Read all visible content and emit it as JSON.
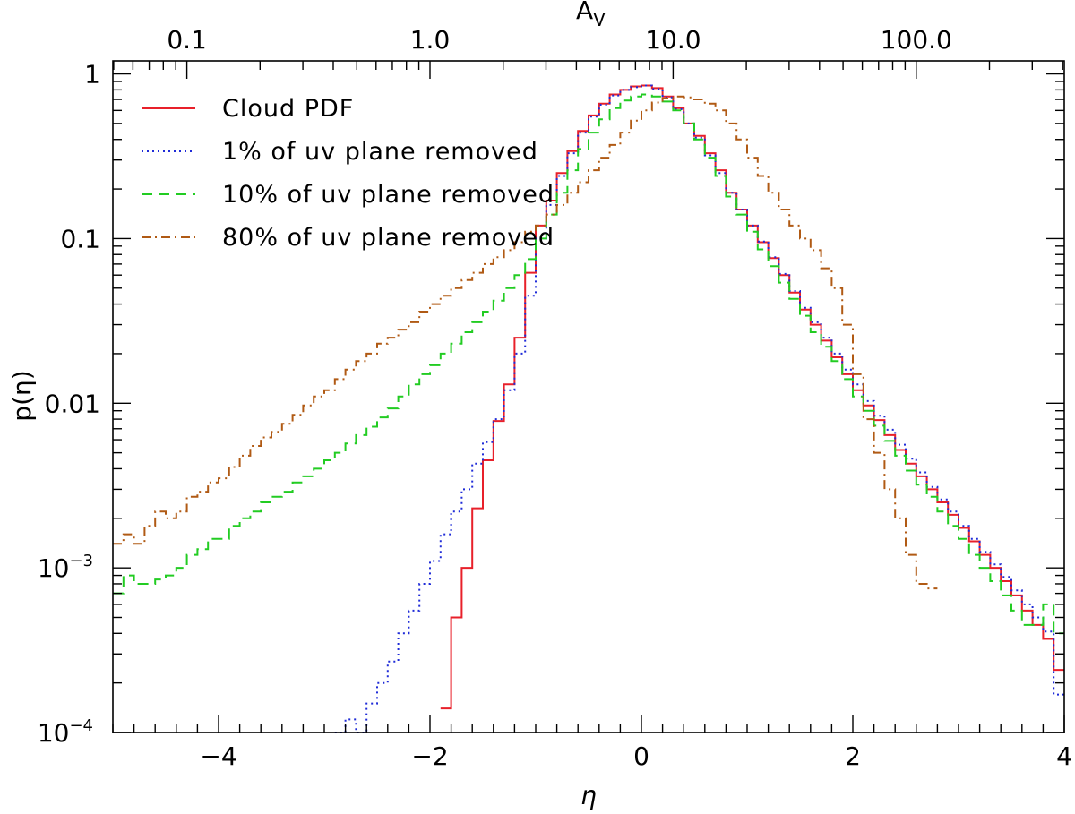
{
  "chart_data": {
    "type": "line",
    "step": true,
    "xlabel": "η",
    "ylabel": "p(η)",
    "top_axis_label": "A",
    "top_axis_label_subscript": "V",
    "xlim": [
      -5,
      4
    ],
    "ylim": [
      0.0001,
      1.2
    ],
    "yscale": "log",
    "x_ticks": [
      -4,
      -2,
      0,
      2,
      4
    ],
    "x_tick_labels": [
      "−4",
      "−2",
      "0",
      "2",
      "4"
    ],
    "y_ticks": [
      {
        "value": 1,
        "label": "1"
      },
      {
        "value": 0.1,
        "label": "0.1"
      },
      {
        "value": 0.01,
        "label": "0.01"
      },
      {
        "value": 0.001,
        "base": "10",
        "exp": "−3"
      },
      {
        "value": 0.0001,
        "base": "10",
        "exp": "−4"
      }
    ],
    "top_ticks": [
      {
        "eta": -4.3,
        "label": "0.1"
      },
      {
        "eta": -2.0,
        "label": "1.0"
      },
      {
        "eta": 0.3,
        "label": "10.0"
      },
      {
        "eta": 2.6,
        "label": "100.0"
      }
    ],
    "legend_position": "top-left",
    "series": [
      {
        "name": "Cloud PDF",
        "color": "#e8202a",
        "dash": "solid",
        "x": [
          -1.85,
          -1.75,
          -1.65,
          -1.55,
          -1.45,
          -1.35,
          -1.25,
          -1.15,
          -1.05,
          -0.95,
          -0.85,
          -0.75,
          -0.65,
          -0.55,
          -0.45,
          -0.35,
          -0.25,
          -0.15,
          -0.05,
          0.05,
          0.15,
          0.25,
          0.35,
          0.45,
          0.55,
          0.65,
          0.75,
          0.85,
          0.95,
          1.05,
          1.15,
          1.25,
          1.35,
          1.45,
          1.55,
          1.65,
          1.75,
          1.85,
          1.95,
          2.05,
          2.15,
          2.25,
          2.35,
          2.45,
          2.55,
          2.65,
          2.75,
          2.85,
          2.95,
          3.05,
          3.15,
          3.25,
          3.35,
          3.45,
          3.55,
          3.65,
          3.75,
          3.85,
          3.95
        ],
        "y": [
          0.00014,
          0.0005,
          0.001,
          0.0023,
          0.0045,
          0.0078,
          0.013,
          0.025,
          0.062,
          0.12,
          0.17,
          0.25,
          0.34,
          0.45,
          0.56,
          0.66,
          0.75,
          0.8,
          0.84,
          0.85,
          0.82,
          0.73,
          0.62,
          0.5,
          0.42,
          0.33,
          0.26,
          0.19,
          0.15,
          0.12,
          0.095,
          0.076,
          0.06,
          0.047,
          0.037,
          0.03,
          0.024,
          0.019,
          0.015,
          0.012,
          0.0097,
          0.0079,
          0.0064,
          0.0052,
          0.0043,
          0.0036,
          0.003,
          0.0025,
          0.0021,
          0.00175,
          0.00145,
          0.0012,
          0.001,
          0.00083,
          0.00068,
          0.00055,
          0.00045,
          0.00037,
          0.00024
        ]
      },
      {
        "name": "1% of uv plane removed",
        "color": "#1f2bd8",
        "dash": "dotted",
        "x": [
          -2.85,
          -2.75,
          -2.65,
          -2.55,
          -2.45,
          -2.35,
          -2.25,
          -2.15,
          -2.05,
          -1.95,
          -1.85,
          -1.75,
          -1.65,
          -1.55,
          -1.45,
          -1.35,
          -1.25,
          -1.15,
          -1.05,
          -0.95,
          -0.85,
          -0.75,
          -0.65,
          -0.55,
          -0.45,
          -0.35,
          -0.25,
          -0.15,
          -0.05,
          0.05,
          0.15,
          0.25,
          0.35,
          0.45,
          0.55,
          0.65,
          0.75,
          0.85,
          0.95,
          1.05,
          1.15,
          1.25,
          1.35,
          1.45,
          1.55,
          1.65,
          1.75,
          1.85,
          1.95,
          2.05,
          2.15,
          2.25,
          2.35,
          2.45,
          2.55,
          2.65,
          2.75,
          2.85,
          2.95,
          3.05,
          3.15,
          3.25,
          3.35,
          3.45,
          3.55,
          3.65,
          3.75,
          3.85,
          3.95
        ],
        "y": [
          0.0001,
          0.00012,
          0.0001,
          0.00015,
          0.0002,
          0.00027,
          0.0004,
          0.00055,
          0.0008,
          0.0011,
          0.0016,
          0.0022,
          0.003,
          0.0043,
          0.0058,
          0.008,
          0.012,
          0.02,
          0.045,
          0.1,
          0.16,
          0.24,
          0.33,
          0.44,
          0.55,
          0.65,
          0.74,
          0.8,
          0.83,
          0.85,
          0.81,
          0.72,
          0.61,
          0.5,
          0.41,
          0.32,
          0.25,
          0.19,
          0.15,
          0.12,
          0.096,
          0.077,
          0.061,
          0.048,
          0.038,
          0.031,
          0.025,
          0.02,
          0.016,
          0.013,
          0.0103,
          0.0084,
          0.0069,
          0.0056,
          0.0046,
          0.0038,
          0.0031,
          0.0026,
          0.0022,
          0.0018,
          0.0015,
          0.00125,
          0.00105,
          0.00088,
          0.00073,
          0.0006,
          0.0005,
          0.00041,
          0.00017
        ]
      },
      {
        "name": "10% of uv plane removed",
        "color": "#22cc22",
        "dash": "dashed",
        "x": [
          -4.95,
          -4.85,
          -4.75,
          -4.65,
          -4.55,
          -4.45,
          -4.35,
          -4.25,
          -4.15,
          -4.05,
          -3.95,
          -3.85,
          -3.75,
          -3.65,
          -3.55,
          -3.45,
          -3.35,
          -3.25,
          -3.15,
          -3.05,
          -2.95,
          -2.85,
          -2.75,
          -2.65,
          -2.55,
          -2.45,
          -2.35,
          -2.25,
          -2.15,
          -2.05,
          -1.95,
          -1.85,
          -1.75,
          -1.65,
          -1.55,
          -1.45,
          -1.35,
          -1.25,
          -1.15,
          -1.05,
          -0.95,
          -0.85,
          -0.75,
          -0.65,
          -0.55,
          -0.45,
          -0.35,
          -0.25,
          -0.15,
          -0.05,
          0.05,
          0.15,
          0.25,
          0.35,
          0.45,
          0.55,
          0.65,
          0.75,
          0.85,
          0.95,
          1.05,
          1.15,
          1.25,
          1.35,
          1.45,
          1.55,
          1.65,
          1.75,
          1.85,
          1.95,
          2.05,
          2.15,
          2.25,
          2.35,
          2.45,
          2.55,
          2.65,
          2.75,
          2.85,
          2.95,
          3.05,
          3.15,
          3.25,
          3.35,
          3.45,
          3.55,
          3.65,
          3.75,
          3.85,
          3.95
        ],
        "y": [
          0.0007,
          0.0009,
          0.0008,
          0.0008,
          0.00085,
          0.0009,
          0.001,
          0.0012,
          0.0013,
          0.0015,
          0.0015,
          0.0018,
          0.002,
          0.0022,
          0.0025,
          0.0027,
          0.0029,
          0.0033,
          0.0036,
          0.004,
          0.0045,
          0.005,
          0.0057,
          0.0064,
          0.0072,
          0.0082,
          0.0093,
          0.011,
          0.013,
          0.015,
          0.017,
          0.02,
          0.023,
          0.027,
          0.031,
          0.036,
          0.042,
          0.05,
          0.06,
          0.075,
          0.1,
          0.14,
          0.19,
          0.26,
          0.35,
          0.44,
          0.53,
          0.62,
          0.69,
          0.73,
          0.75,
          0.73,
          0.68,
          0.6,
          0.5,
          0.4,
          0.31,
          0.24,
          0.18,
          0.14,
          0.11,
          0.086,
          0.068,
          0.054,
          0.043,
          0.034,
          0.027,
          0.022,
          0.018,
          0.014,
          0.011,
          0.009,
          0.0073,
          0.0059,
          0.0048,
          0.0039,
          0.0032,
          0.0027,
          0.0022,
          0.0018,
          0.0015,
          0.0012,
          0.001,
          0.00083,
          0.00068,
          0.00055,
          0.00045,
          0.00045,
          0.0006,
          0.0004
        ]
      },
      {
        "name": "80% of uv plane removed",
        "color": "#b05a14",
        "dash": "dashdot",
        "x": [
          -4.95,
          -4.85,
          -4.75,
          -4.65,
          -4.55,
          -4.45,
          -4.35,
          -4.25,
          -4.15,
          -4.05,
          -3.95,
          -3.85,
          -3.75,
          -3.65,
          -3.55,
          -3.45,
          -3.35,
          -3.25,
          -3.15,
          -3.05,
          -2.95,
          -2.85,
          -2.75,
          -2.65,
          -2.55,
          -2.45,
          -2.35,
          -2.25,
          -2.15,
          -2.05,
          -1.95,
          -1.85,
          -1.75,
          -1.65,
          -1.55,
          -1.45,
          -1.35,
          -1.25,
          -1.15,
          -1.05,
          -0.95,
          -0.85,
          -0.75,
          -0.65,
          -0.55,
          -0.45,
          -0.35,
          -0.25,
          -0.15,
          -0.05,
          0.05,
          0.15,
          0.25,
          0.35,
          0.45,
          0.55,
          0.65,
          0.75,
          0.85,
          0.95,
          1.05,
          1.15,
          1.25,
          1.35,
          1.45,
          1.55,
          1.65,
          1.75,
          1.85,
          1.95,
          2.05,
          2.15,
          2.25,
          2.35,
          2.45,
          2.55,
          2.65,
          2.75
        ],
        "y": [
          0.0014,
          0.0016,
          0.0014,
          0.0018,
          0.0022,
          0.002,
          0.0022,
          0.0027,
          0.0029,
          0.0033,
          0.0035,
          0.0041,
          0.0048,
          0.0055,
          0.0062,
          0.0067,
          0.0075,
          0.0085,
          0.0097,
          0.011,
          0.012,
          0.014,
          0.016,
          0.018,
          0.02,
          0.023,
          0.025,
          0.028,
          0.031,
          0.036,
          0.04,
          0.045,
          0.05,
          0.056,
          0.062,
          0.07,
          0.077,
          0.085,
          0.095,
          0.11,
          0.12,
          0.14,
          0.16,
          0.19,
          0.22,
          0.26,
          0.31,
          0.37,
          0.44,
          0.52,
          0.6,
          0.67,
          0.71,
          0.73,
          0.72,
          0.7,
          0.66,
          0.6,
          0.5,
          0.4,
          0.31,
          0.24,
          0.19,
          0.15,
          0.12,
          0.1,
          0.085,
          0.066,
          0.05,
          0.03,
          0.015,
          0.008,
          0.005,
          0.003,
          0.002,
          0.0012,
          0.0008,
          0.00075
        ]
      }
    ]
  }
}
